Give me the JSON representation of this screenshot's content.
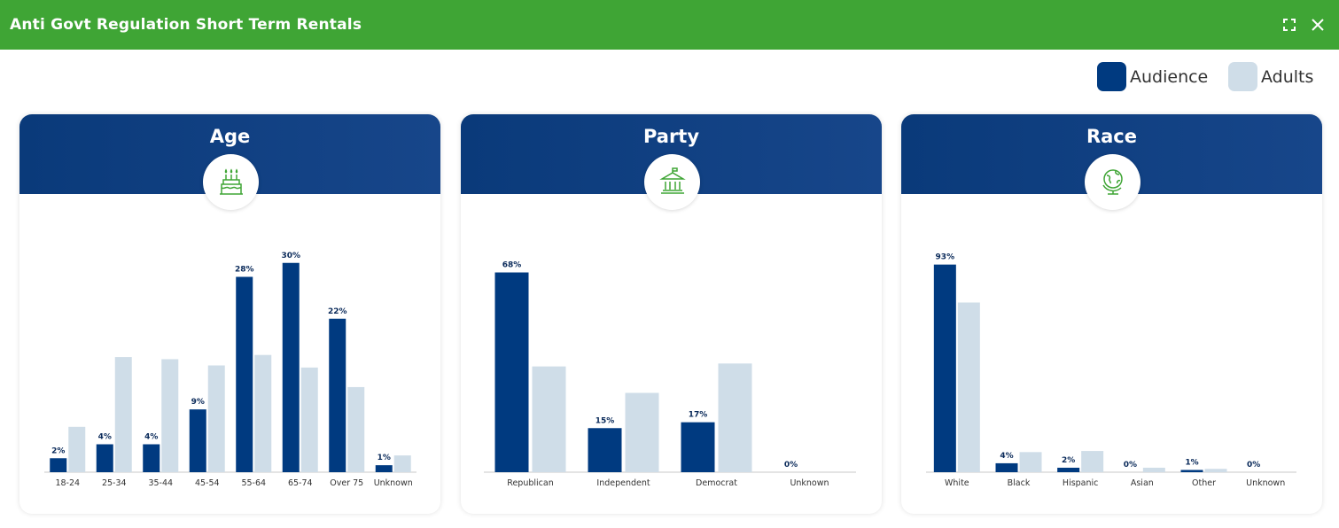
{
  "window": {
    "title": "Anti Govt Regulation Short Term Rentals",
    "expand_icon": "expand-icon",
    "close_icon": "close-icon"
  },
  "legend": {
    "audience_label": "Audience",
    "adults_label": "Adults"
  },
  "colors": {
    "header_green": "#3fa535",
    "audience": "#003a80",
    "adults": "#cfdde8",
    "card_header": "#0a3a7a",
    "icon_green": "#3fa535"
  },
  "cards": [
    {
      "title": "Age",
      "icon": "birthday-cake-icon"
    },
    {
      "title": "Party",
      "icon": "government-building-icon"
    },
    {
      "title": "Race",
      "icon": "globe-icon"
    }
  ],
  "chart_data": [
    {
      "type": "bar",
      "title": "Age",
      "categories": [
        "18-24",
        "25-34",
        "35-44",
        "45-54",
        "55-64",
        "65-74",
        "Over 75",
        "Unknown"
      ],
      "series": [
        {
          "name": "Audience",
          "values": [
            2,
            4,
            4,
            9,
            28,
            30,
            22,
            1
          ],
          "labels": [
            "2%",
            "4%",
            "4%",
            "9%",
            "28%",
            "30%",
            "22%",
            "1%"
          ]
        },
        {
          "name": "Adults",
          "values": [
            6.5,
            16.5,
            16.2,
            15.3,
            16.8,
            15,
            12.2,
            2.4
          ]
        }
      ],
      "ylim": [
        0,
        32
      ]
    },
    {
      "type": "bar",
      "title": "Party",
      "categories": [
        "Republican",
        "Independent",
        "Democrat",
        "Unknown"
      ],
      "series": [
        {
          "name": "Audience",
          "values": [
            68,
            15,
            17,
            0
          ],
          "labels": [
            "68%",
            "15%",
            "17%",
            "0%"
          ]
        },
        {
          "name": "Adults",
          "values": [
            36,
            27,
            37,
            0
          ]
        }
      ],
      "ylim": [
        0,
        76
      ]
    },
    {
      "type": "bar",
      "title": "Race",
      "categories": [
        "White",
        "Black",
        "Hispanic",
        "Asian",
        "Other",
        "Unknown"
      ],
      "series": [
        {
          "name": "Audience",
          "values": [
            93,
            4,
            2,
            0,
            1,
            0
          ],
          "labels": [
            "93%",
            "4%",
            "2%",
            "0%",
            "1%",
            "0%"
          ]
        },
        {
          "name": "Adults",
          "values": [
            76,
            9,
            9.5,
            2,
            1.5,
            0
          ]
        }
      ],
      "ylim": [
        0,
        100
      ]
    }
  ]
}
